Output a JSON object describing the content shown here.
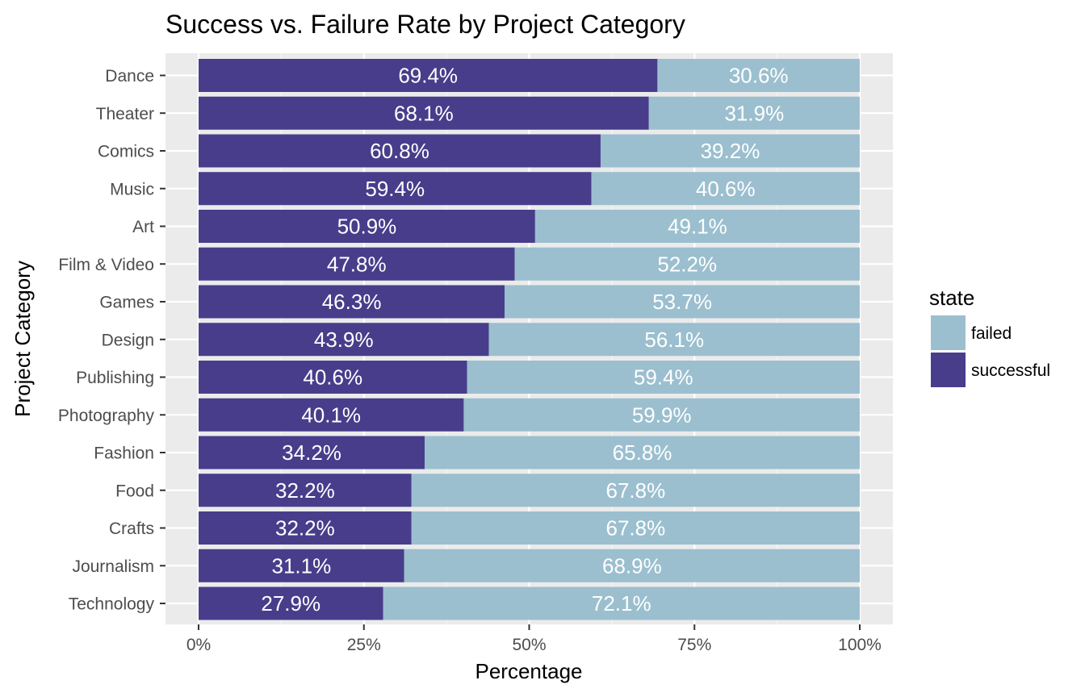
{
  "chart_data": {
    "type": "bar",
    "orientation": "horizontal",
    "stacked": true,
    "title": "Success vs. Failure Rate by Project Category",
    "xlabel": "Percentage",
    "ylabel": "Project Category",
    "xlim": [
      0,
      100
    ],
    "x_ticks": [
      "0%",
      "25%",
      "50%",
      "75%",
      "100%"
    ],
    "categories": [
      "Dance",
      "Theater",
      "Comics",
      "Music",
      "Art",
      "Film & Video",
      "Games",
      "Design",
      "Publishing",
      "Photography",
      "Fashion",
      "Food",
      "Crafts",
      "Journalism",
      "Technology"
    ],
    "series": [
      {
        "name": "successful",
        "color": "#483d8b",
        "values": [
          69.4,
          68.1,
          60.8,
          59.4,
          50.9,
          47.8,
          46.3,
          43.9,
          40.6,
          40.1,
          34.2,
          32.2,
          32.2,
          31.1,
          27.9
        ],
        "labels": [
          "69.4%",
          "68.1%",
          "60.8%",
          "59.4%",
          "50.9%",
          "47.8%",
          "46.3%",
          "43.9%",
          "40.6%",
          "40.1%",
          "34.2%",
          "32.2%",
          "32.2%",
          "31.1%",
          "27.9%"
        ]
      },
      {
        "name": "failed",
        "color": "#9bbfcf",
        "values": [
          30.6,
          31.9,
          39.2,
          40.6,
          49.1,
          52.2,
          53.7,
          56.1,
          59.4,
          59.9,
          65.8,
          67.8,
          67.8,
          68.9,
          72.1
        ],
        "labels": [
          "30.6%",
          "31.9%",
          "39.2%",
          "40.6%",
          "49.1%",
          "52.2%",
          "53.7%",
          "56.1%",
          "59.4%",
          "59.9%",
          "65.8%",
          "67.8%",
          "67.8%",
          "68.9%",
          "72.1%"
        ]
      }
    ],
    "grid": true,
    "panel_background": "#ebebeb",
    "legend": {
      "title": "state",
      "position": "right",
      "entries": [
        {
          "label": "failed",
          "color": "#9bbfcf"
        },
        {
          "label": "successful",
          "color": "#483d8b"
        }
      ]
    }
  }
}
